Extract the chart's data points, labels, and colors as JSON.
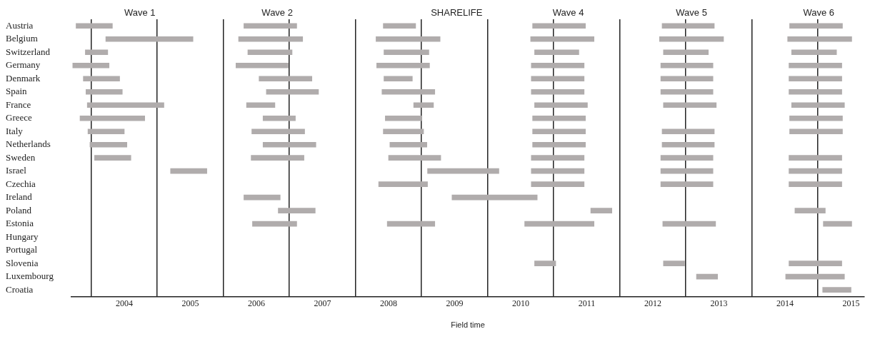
{
  "chart_data": {
    "type": "bar",
    "orientation": "horizontal",
    "xlabel": "Field time",
    "categories": [
      "Austria",
      "Belgium",
      "Switzerland",
      "Germany",
      "Denmark",
      "Spain",
      "France",
      "Greece",
      "Italy",
      "Netherlands",
      "Sweden",
      "Israel",
      "Czechia",
      "Ireland",
      "Poland",
      "Estonia",
      "Hungary",
      "Portugal",
      "Slovenia",
      "Luxembourg",
      "Croatia"
    ],
    "series": [
      {
        "name": "Wave 1",
        "color": "#b0acac",
        "base": [
          2003.27,
          2003.72,
          2003.41,
          2003.22,
          2003.38,
          2003.42,
          2003.44,
          2003.33,
          2003.45,
          2003.48,
          2003.55,
          2004.7,
          null,
          null,
          null,
          null,
          null,
          null,
          null,
          null,
          null
        ],
        "values": [
          0.55,
          1.32,
          0.34,
          0.55,
          0.55,
          0.55,
          1.16,
          0.98,
          0.55,
          0.56,
          0.55,
          0.55,
          null,
          null,
          null,
          null,
          null,
          null,
          null,
          null,
          null
        ]
      },
      {
        "name": "Wave 2",
        "color": "#b0acac",
        "base": [
          2005.81,
          2005.73,
          2005.87,
          2005.69,
          2006.04,
          2006.15,
          2005.85,
          2006.1,
          2005.93,
          2006.1,
          2005.92,
          null,
          null,
          2005.81,
          2006.33,
          2005.94,
          null,
          null,
          null,
          null,
          null
        ],
        "values": [
          0.8,
          0.97,
          0.67,
          0.79,
          0.8,
          0.79,
          0.43,
          0.49,
          0.8,
          0.8,
          0.8,
          null,
          null,
          0.55,
          0.56,
          0.67,
          null,
          null,
          null,
          null,
          null
        ]
      },
      {
        "name": "SHARELIFE",
        "color": "#b0acac",
        "base": [
          2007.92,
          2007.81,
          2007.93,
          2007.82,
          2007.93,
          2007.9,
          2008.38,
          2007.95,
          2007.92,
          2008.02,
          2008.0,
          2008.59,
          2007.85,
          2008.96,
          null,
          2007.98,
          null,
          null,
          null,
          null,
          null
        ],
        "values": [
          0.49,
          0.97,
          0.68,
          0.8,
          0.43,
          0.8,
          0.3,
          0.55,
          0.61,
          0.56,
          0.79,
          1.08,
          0.74,
          1.29,
          null,
          0.72,
          null,
          null,
          null,
          null,
          null
        ]
      },
      {
        "name": "Wave 4",
        "color": "#b0acac",
        "base": [
          2010.18,
          2010.15,
          2010.21,
          2010.16,
          2010.16,
          2010.16,
          2010.21,
          2010.18,
          2010.18,
          2010.18,
          2010.16,
          2010.16,
          2010.16,
          null,
          2011.06,
          2010.06,
          null,
          null,
          2010.21,
          null,
          null
        ],
        "values": [
          0.8,
          0.96,
          0.67,
          0.8,
          0.8,
          0.8,
          0.8,
          0.8,
          0.8,
          0.8,
          0.8,
          0.8,
          0.8,
          null,
          0.32,
          1.05,
          null,
          null,
          0.32,
          null,
          null
        ]
      },
      {
        "name": "Wave 5",
        "color": "#b0acac",
        "base": [
          2012.14,
          2012.1,
          2012.16,
          2012.12,
          2012.12,
          2012.12,
          2012.16,
          null,
          2012.14,
          2012.14,
          2012.12,
          2012.12,
          2012.12,
          null,
          null,
          2012.15,
          null,
          null,
          2012.16,
          2012.66,
          null
        ],
        "values": [
          0.79,
          0.97,
          0.68,
          0.79,
          0.79,
          0.79,
          0.8,
          null,
          0.79,
          0.79,
          0.79,
          0.79,
          0.79,
          null,
          null,
          0.8,
          null,
          null,
          0.32,
          0.32,
          null
        ]
      },
      {
        "name": "Wave 6",
        "color": "#b0acac",
        "base": [
          2014.07,
          2014.04,
          2014.1,
          2014.06,
          2014.06,
          2014.06,
          2014.1,
          2014.07,
          2014.07,
          null,
          2014.06,
          2014.06,
          2014.06,
          null,
          2014.15,
          2014.58,
          null,
          null,
          2014.06,
          2014.01,
          2014.57
        ],
        "values": [
          0.8,
          0.97,
          0.68,
          0.8,
          0.8,
          0.8,
          0.8,
          0.8,
          0.8,
          null,
          0.8,
          0.8,
          0.8,
          null,
          0.46,
          0.43,
          null,
          null,
          0.8,
          0.89,
          0.43
        ]
      }
    ],
    "xlim": [
      2003.2,
      2015.2
    ],
    "xticks": [
      {
        "value": 2003.5,
        "label": null
      },
      2004,
      {
        "value": 2004.5,
        "label": null
      },
      2005,
      {
        "value": 2005.5,
        "label": null
      },
      2006,
      {
        "value": 2006.5,
        "label": null
      },
      2007,
      {
        "value": 2007.5,
        "label": null
      },
      2008,
      {
        "value": 2008.5,
        "label": null
      },
      2009,
      {
        "value": 2009.5,
        "label": null
      },
      2010,
      {
        "value": 2010.5,
        "label": null
      },
      2011,
      {
        "value": 2011.5,
        "label": null
      },
      2012,
      {
        "value": 2012.5,
        "label": null
      },
      2013,
      {
        "value": 2013.5,
        "label": null
      },
      2014,
      {
        "value": 2014.5,
        "label": null
      },
      2015
    ],
    "grid": "x",
    "legend": false
  }
}
